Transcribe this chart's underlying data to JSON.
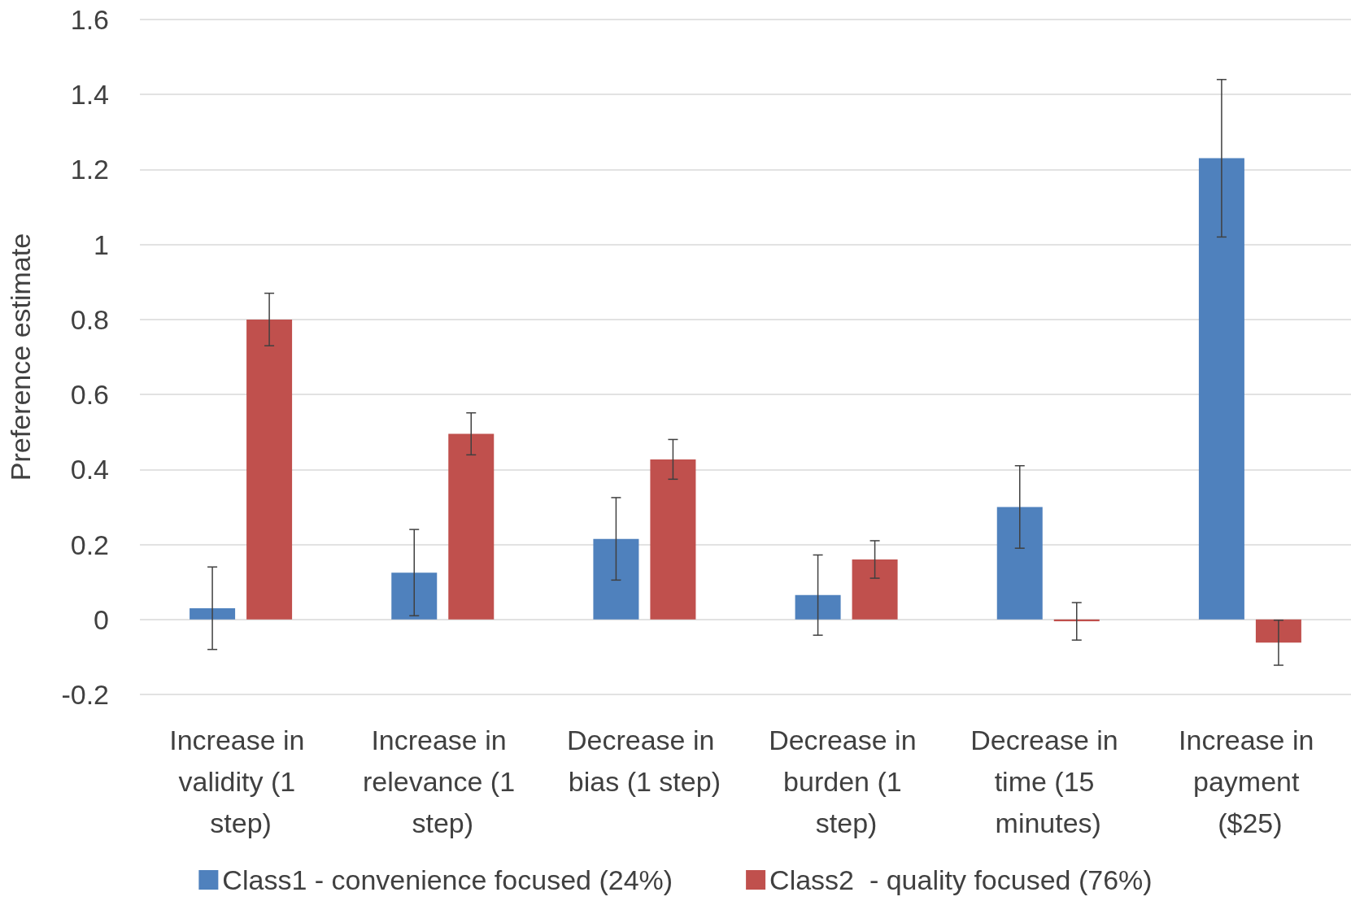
{
  "chart_data": {
    "type": "bar",
    "ylabel": "Preference estimate",
    "categories": [
      "Increase in validity (1 step)",
      "Increase in relevance (1 step)",
      "Decrease in bias (1 step)",
      "Decrease in burden (1 step)",
      "Decrease in time (15 minutes)",
      "Increase in payment ($25)"
    ],
    "series": [
      {
        "name": "Class1 - convenience focused (24%)",
        "color": "#4f81bd",
        "values": [
          0.03,
          0.125,
          0.215,
          0.065,
          0.3,
          1.23
        ],
        "errors": [
          0.11,
          0.115,
          0.11,
          0.107,
          0.11,
          0.21
        ]
      },
      {
        "name": "Class2  - quality focused (76%)",
        "color": "#c0504d",
        "values": [
          0.8,
          0.495,
          0.427,
          0.16,
          -0.005,
          -0.062
        ],
        "errors": [
          0.07,
          0.056,
          0.053,
          0.05,
          0.05,
          0.06
        ]
      }
    ],
    "ylim": [
      -0.2,
      1.6
    ],
    "yticks": [
      -0.2,
      0,
      0.2,
      0.4,
      0.6,
      0.8,
      1,
      1.2,
      1.4,
      1.6
    ],
    "grid": "y",
    "legend": "bottom"
  }
}
